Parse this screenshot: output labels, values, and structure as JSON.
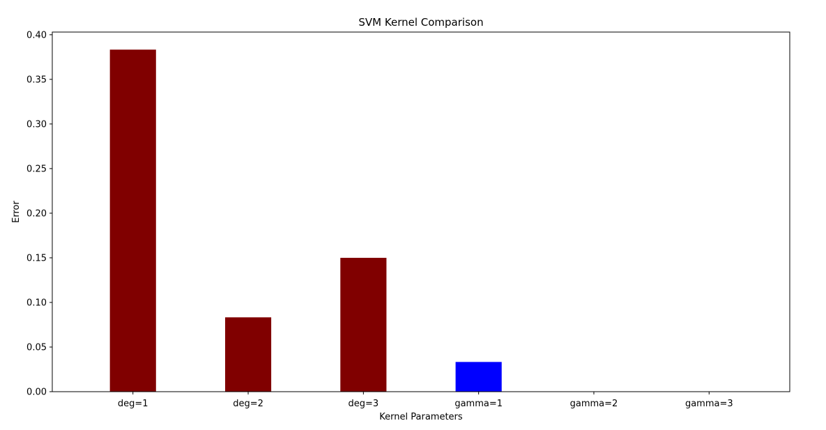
{
  "chart_data": {
    "type": "bar",
    "title": "SVM Kernel Comparison",
    "xlabel": "Kernel Parameters",
    "ylabel": "Error",
    "categories": [
      "deg=1",
      "deg=2",
      "deg=3",
      "gamma=1",
      "gamma=2",
      "gamma=3"
    ],
    "values": [
      0.3833,
      0.0833,
      0.15,
      0.0333,
      0.0,
      0.0
    ],
    "bar_colors": [
      "#800000",
      "#800000",
      "#800000",
      "#0000ff",
      "#0000ff",
      "#0000ff"
    ],
    "ylim": [
      0,
      0.403
    ],
    "yticks": [
      0.0,
      0.05,
      0.1,
      0.15,
      0.2,
      0.25,
      0.3,
      0.35,
      0.4
    ],
    "ytick_labels": [
      "0.00",
      "0.05",
      "0.10",
      "0.15",
      "0.20",
      "0.25",
      "0.30",
      "0.35",
      "0.40"
    ],
    "grid": false,
    "legend": "none"
  }
}
